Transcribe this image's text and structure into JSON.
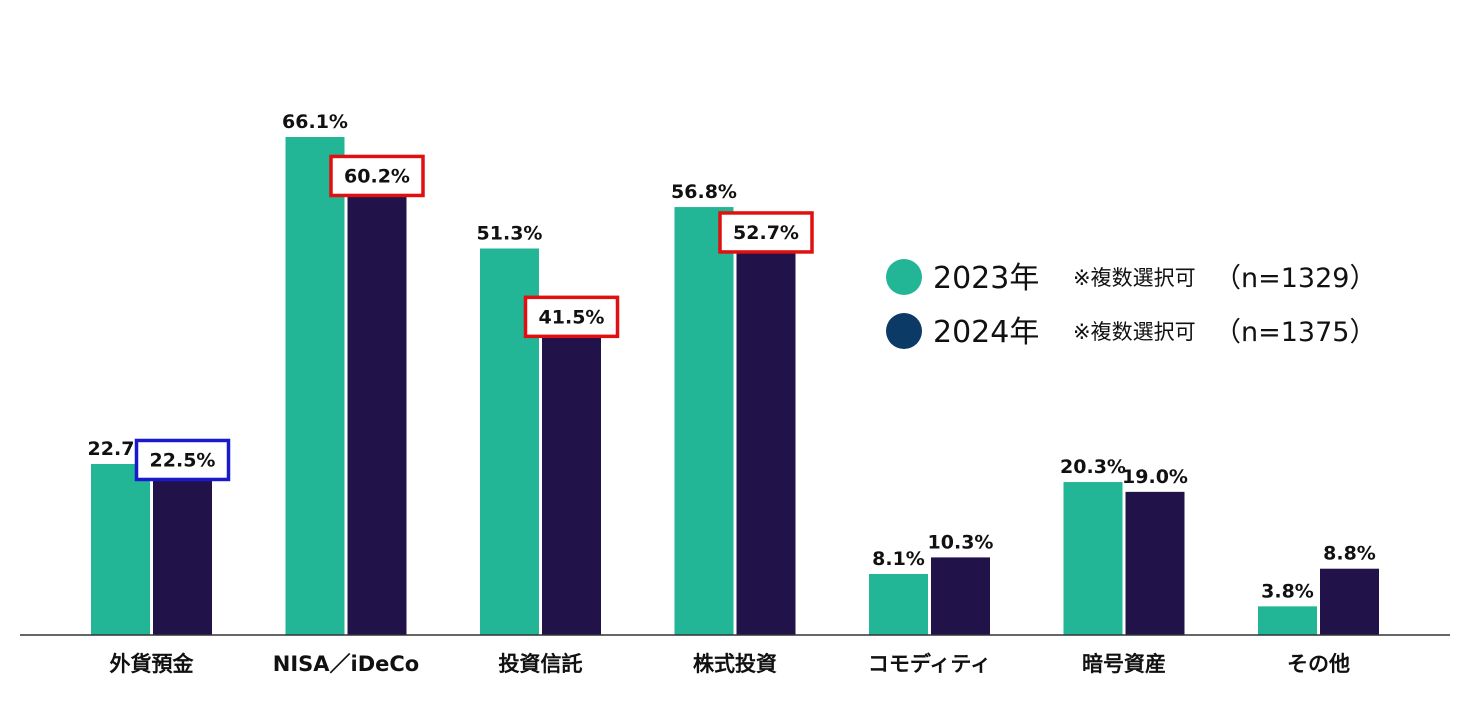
{
  "chart_data": {
    "type": "bar",
    "title": "",
    "xlabel": "",
    "ylabel": "",
    "ylim": [
      0,
      70
    ],
    "grid": false,
    "legend_position": "right",
    "categories": [
      "外貨預金",
      "NISA／iDeCo",
      "投資信託",
      "株式投資",
      "コモディティ",
      "暗号資産",
      "その他"
    ],
    "series": [
      {
        "name": "2023年",
        "note": "※複数選択可",
        "n_label": "（n=1329）",
        "color": "#22b596",
        "values": [
          22.7,
          66.1,
          51.3,
          56.8,
          8.1,
          20.3,
          3.8
        ],
        "labels": [
          "22.7%",
          "66.1%",
          "51.3%",
          "56.8%",
          "8.1%",
          "20.3%",
          "3.8%"
        ]
      },
      {
        "name": "2024年",
        "note": "※複数選択可",
        "n_label": "（n=1375）",
        "color": "#21134a",
        "legend_color": "#0b3a66",
        "values": [
          22.5,
          60.2,
          41.5,
          52.7,
          10.3,
          19.0,
          8.8
        ],
        "labels": [
          "22.5%",
          "60.2%",
          "41.5%",
          "52.7%",
          "10.3%",
          "19.0%",
          "8.8%"
        ]
      }
    ],
    "highlights": [
      {
        "category": "外貨預金",
        "series": "2024年",
        "color": "#1a1acc"
      },
      {
        "category": "NISA／iDeCo",
        "series": "2024年",
        "color": "#e01010"
      },
      {
        "category": "投資信託",
        "series": "2024年",
        "color": "#e01010"
      },
      {
        "category": "株式投資",
        "series": "2024年",
        "color": "#e01010"
      }
    ]
  }
}
